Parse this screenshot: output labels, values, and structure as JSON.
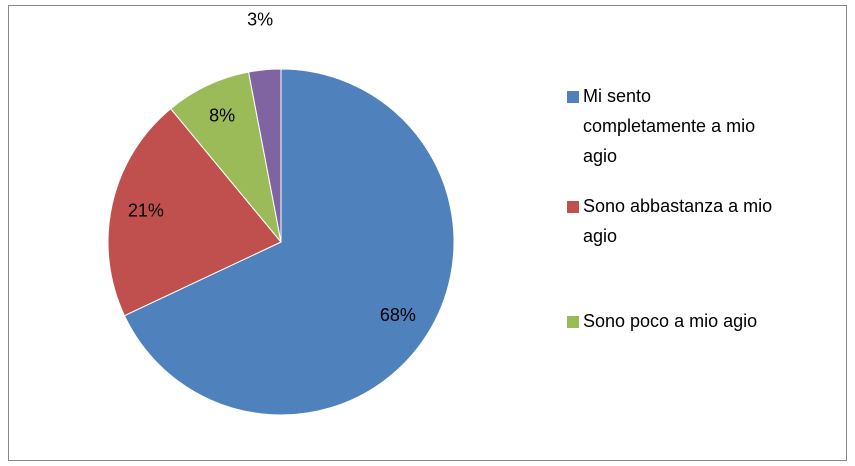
{
  "chart_data": {
    "type": "pie",
    "categories": [
      "Mi sento completamente a mio agio",
      "Sono abbastanza a mio agio",
      "Sono poco a mio agio",
      null
    ],
    "values": [
      68,
      21,
      8,
      3
    ],
    "value_labels": [
      "68%",
      "21%",
      "8%",
      "3%"
    ],
    "colors": [
      "#4f81bd",
      "#c0504d",
      "#9bbb59",
      "#8064a2"
    ],
    "legend": "right"
  }
}
